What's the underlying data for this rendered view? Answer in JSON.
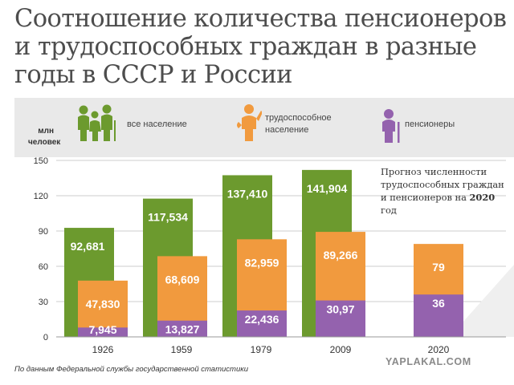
{
  "title_lines": [
    "Соотношение количества пенсионеров",
    "и трудоспособных граждан в разные",
    "годы в СССР и России"
  ],
  "legend": [
    {
      "label": "все население",
      "icon": "family-icon",
      "color": "#6c9a2e"
    },
    {
      "label": "трудоспособное население",
      "icon": "worker-icon",
      "color": "#f19a3e"
    },
    {
      "label": "пенсионеры",
      "icon": "elderly-icon",
      "color": "#9462ae"
    }
  ],
  "unit_label": [
    "млн",
    "человек"
  ],
  "note": {
    "text": "Прогноз численности трудоспособных граждан и пенсионеров на",
    "bold": "2020",
    "suffix": "год"
  },
  "source": "По данным Федеральной службы государственной статистики",
  "watermark": "YAPLAKAL.COM",
  "colors": {
    "total": "#6c9a2e",
    "working": "#f19a3e",
    "pensioners": "#9462ae",
    "text": "#ffffff",
    "grid": "#cccccc"
  },
  "chart_data": {
    "type": "bar",
    "categories": [
      "1926",
      "1959",
      "1979",
      "2009",
      "2020"
    ],
    "series": [
      {
        "name": "все население",
        "values": [
          92.681,
          117.534,
          137.41,
          141.904,
          null
        ],
        "labels": [
          "92,681",
          "117,534",
          "137,410",
          "141,904",
          ""
        ]
      },
      {
        "name": "трудоспособное население",
        "values": [
          47.83,
          68.609,
          82.959,
          89.266,
          79
        ],
        "labels": [
          "47,830",
          "68,609",
          "82,959",
          "89,266",
          "79"
        ]
      },
      {
        "name": "пенсионеры",
        "values": [
          7.945,
          13.827,
          22.436,
          30.97,
          36
        ],
        "labels": [
          "7,945",
          "13,827",
          "22,436",
          "30,97",
          "36"
        ]
      }
    ],
    "yticks": [
      0,
      30,
      60,
      90,
      120,
      150
    ],
    "ylim": [
      0,
      150
    ],
    "grid": true,
    "ylabel": "млн человек"
  }
}
